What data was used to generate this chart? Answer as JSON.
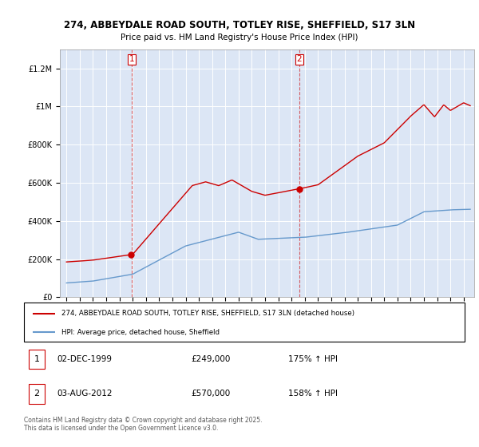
{
  "title_line1": "274, ABBEYDALE ROAD SOUTH, TOTLEY RISE, SHEFFIELD, S17 3LN",
  "title_line2": "Price paid vs. HM Land Registry's House Price Index (HPI)",
  "background_color": "#ffffff",
  "plot_bg_color": "#dce6f5",
  "grid_color": "#ffffff",
  "red_color": "#cc0000",
  "blue_color": "#6699cc",
  "legend_label_red": "274, ABBEYDALE ROAD SOUTH, TOTLEY RISE, SHEFFIELD, S17 3LN (detached house)",
  "legend_label_blue": "HPI: Average price, detached house, Sheffield",
  "ann1_box": "1",
  "ann1_date": "02-DEC-1999",
  "ann1_price": "£249,000",
  "ann1_hpi": "175% ↑ HPI",
  "ann2_box": "2",
  "ann2_date": "03-AUG-2012",
  "ann2_price": "£570,000",
  "ann2_hpi": "158% ↑ HPI",
  "footer": "Contains HM Land Registry data © Crown copyright and database right 2025.\nThis data is licensed under the Open Government Licence v3.0.",
  "ylim": [
    0,
    1300000
  ],
  "yticks": [
    0,
    200000,
    400000,
    600000,
    800000,
    1000000,
    1200000
  ],
  "sale1_year": 1999.917,
  "sale1_price_val": 249000,
  "sale2_year": 2012.583,
  "sale2_price_val": 570000,
  "xmin": 1994.5,
  "xmax": 2025.8
}
